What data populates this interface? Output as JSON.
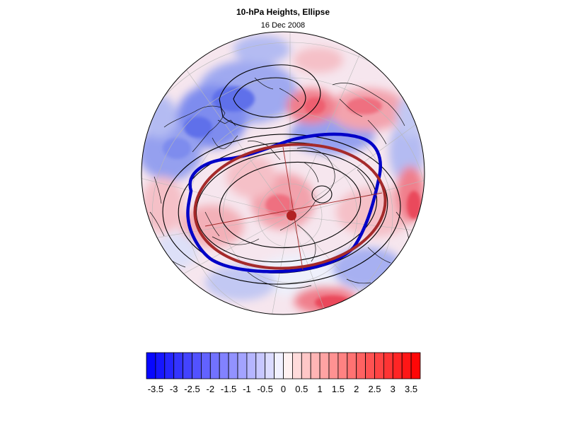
{
  "header": {
    "title": "10-hPa Heights, Ellipse",
    "subtitle": "16 Dec 2008"
  },
  "map": {
    "projection": "polar stereographic (north pole)",
    "fill_variable": "10-hPa height anomaly (standardized)",
    "contour_color": "#000000",
    "vortex_edge_color": "#0000c8",
    "ellipse_color": "#a52a2a",
    "ellipse_center_color": "#b22222"
  },
  "colorbar": {
    "tick_labels": [
      "-3.5",
      "-3",
      "-2.5",
      "-2",
      "-1.5",
      "-1",
      "-0.5",
      "0",
      "0.5",
      "1",
      "1.5",
      "2",
      "2.5",
      "3",
      "3.5"
    ],
    "min": -3.75,
    "max": 3.75,
    "step": 0.25,
    "negative_color": "#0000ff",
    "positive_color": "#ff0000",
    "neutral_color": "#ffffff"
  }
}
